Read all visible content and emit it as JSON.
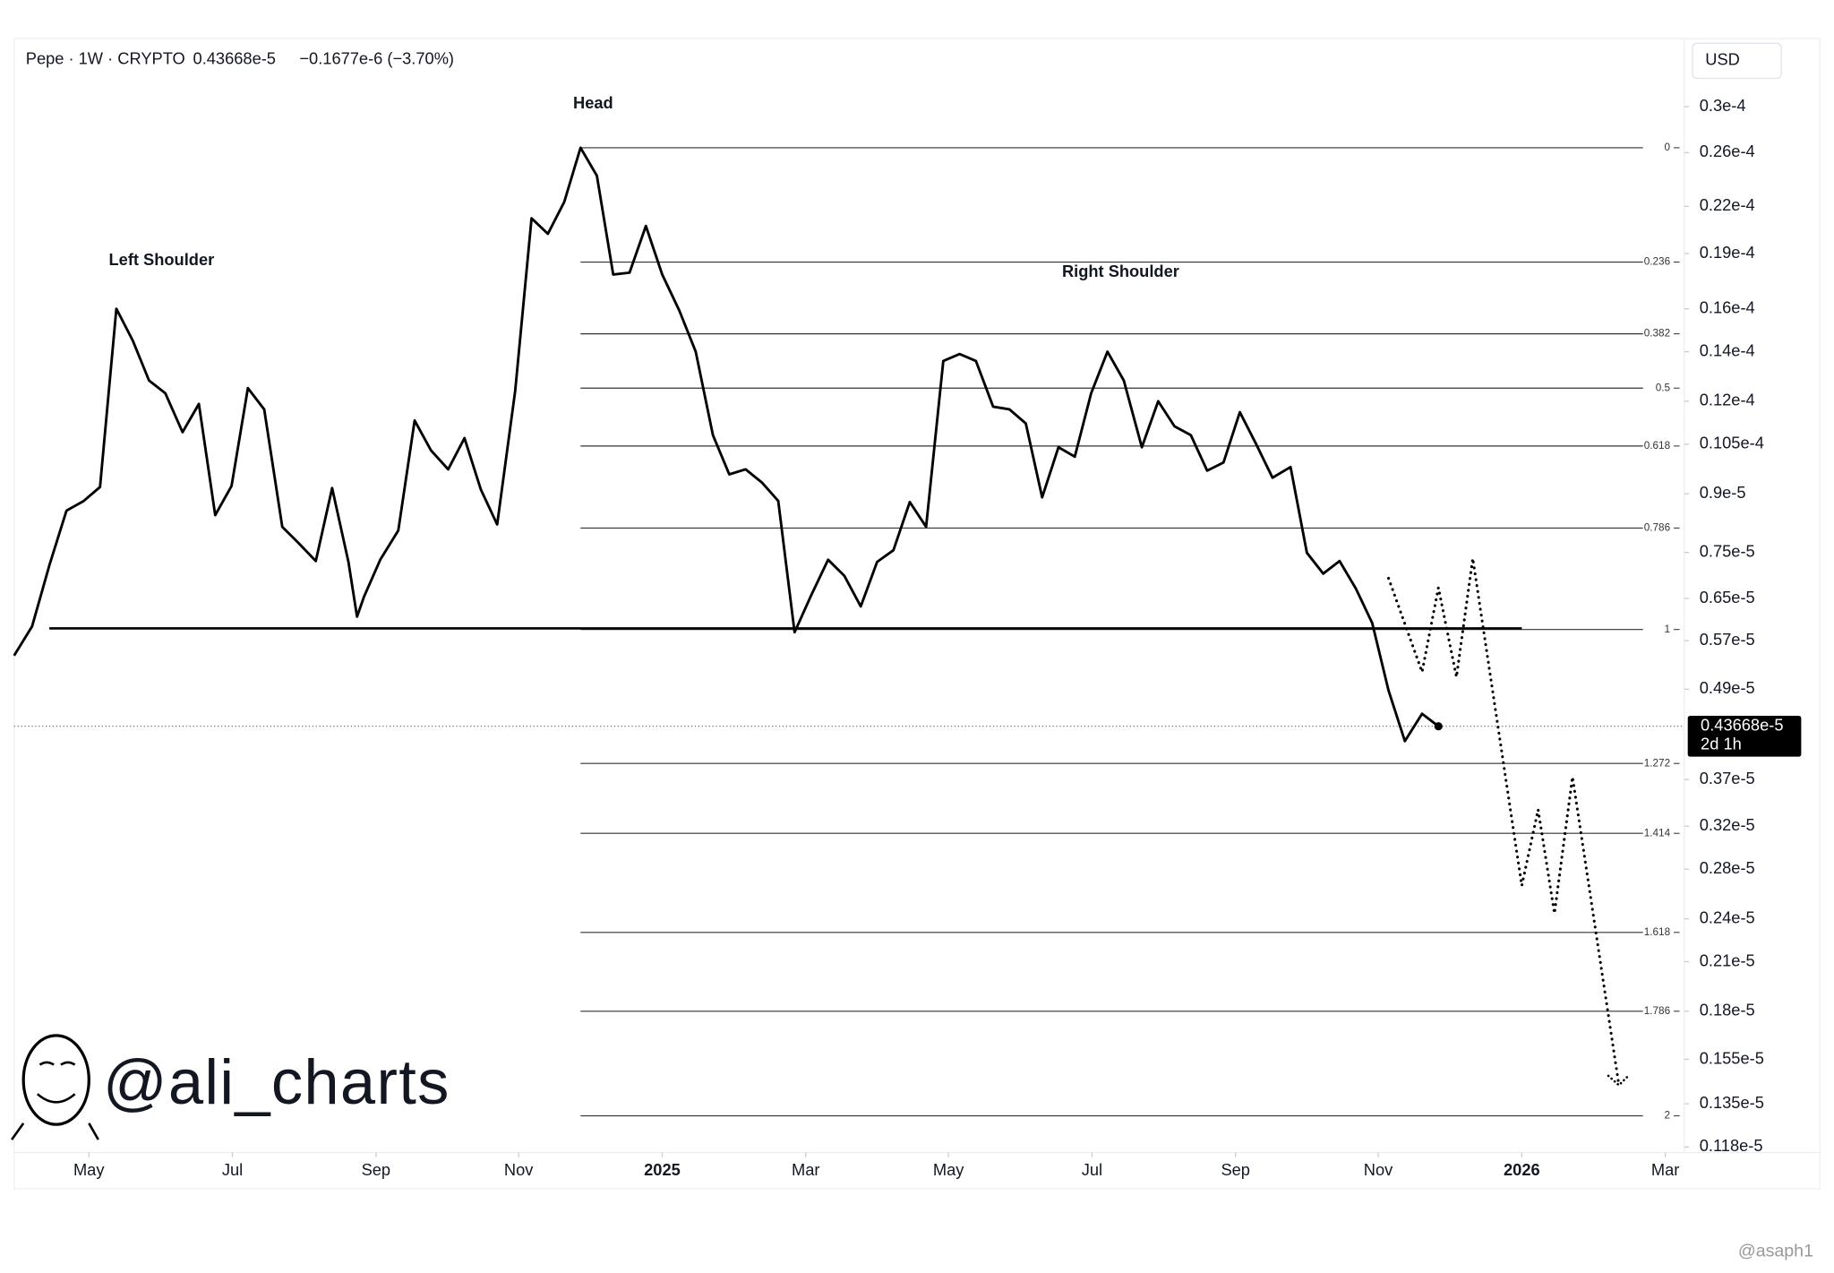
{
  "header": {
    "symbol": "Pepe · 1W · CRYPTO",
    "change": "−0.1677e-6 (−3.70%)",
    "currency": "USD"
  },
  "chart_data": {
    "type": "line",
    "log_scale": true,
    "color": "#000000",
    "annotations": [
      "Head",
      "Left Shoulder",
      "Right Shoulder"
    ],
    "x": [
      2024.246,
      2024.267,
      2024.287,
      2024.307,
      2024.327,
      2024.346,
      2024.365,
      2024.384,
      2024.403,
      2024.422,
      2024.442,
      2024.461,
      2024.48,
      2024.499,
      2024.518,
      2024.537,
      2024.558,
      2024.577,
      2024.597,
      2024.616,
      2024.635,
      2024.645,
      2024.653,
      2024.672,
      2024.693,
      2024.712,
      2024.731,
      2024.751,
      2024.77,
      2024.789,
      2024.808,
      2024.829,
      2024.848,
      2024.867,
      2024.886,
      2024.905,
      2024.924,
      2024.943,
      2024.962,
      2024.981,
      2025.0,
      2025.02,
      2025.039,
      2025.059,
      2025.078,
      2025.097,
      2025.116,
      2025.135,
      2025.154,
      2025.173,
      2025.193,
      2025.212,
      2025.231,
      2025.25,
      2025.269,
      2025.288,
      2025.307,
      2025.327,
      2025.346,
      2025.365,
      2025.385,
      2025.404,
      2025.423,
      2025.442,
      2025.461,
      2025.48,
      2025.499,
      2025.518,
      2025.537,
      2025.558,
      2025.577,
      2025.596,
      2025.615,
      2025.634,
      2025.653,
      2025.672,
      2025.691,
      2025.71,
      2025.731,
      2025.75,
      2025.769,
      2025.788,
      2025.807,
      2025.826,
      2025.845,
      2025.864,
      2025.884,
      2025.903
    ],
    "values": [
      5.44e-06,
      5.96e-06,
      7.2e-06,
      8.54e-06,
      8.8e-06,
      9.19e-06,
      1.6e-05,
      1.45e-05,
      1.28e-05,
      1.23e-05,
      1.09e-05,
      1.19e-05,
      8.42e-06,
      9.22e-06,
      1.25e-05,
      1.17e-05,
      8.12e-06,
      7.72e-06,
      7.3e-06,
      9.16e-06,
      7.28e-06,
      6.14e-06,
      6.53e-06,
      7.33e-06,
      8.03e-06,
      1.13e-05,
      1.03e-05,
      9.71e-06,
      1.07e-05,
      9.12e-06,
      8.18e-06,
      1.24e-05,
      2.12e-05,
      2.02e-05,
      2.23e-05,
      2.64e-05,
      2.42e-05,
      1.78e-05,
      1.79e-05,
      2.07e-05,
      1.78e-05,
      1.59e-05,
      1.4e-05,
      1.08e-05,
      9.56e-06,
      9.71e-06,
      9.32e-06,
      8.8e-06,
      5.85e-06,
      6.55e-06,
      7.33e-06,
      6.97e-06,
      6.34e-06,
      7.28e-06,
      7.55e-06,
      8.77e-06,
      8.12e-06,
      1.36e-05,
      1.39e-05,
      1.36e-05,
      1.18e-05,
      1.17e-05,
      1.12e-05,
      8.9e-06,
      1.04e-05,
      1.01e-05,
      1.23e-05,
      1.4e-05,
      1.28e-05,
      1.04e-05,
      1.2e-05,
      1.11e-05,
      1.08e-05,
      9.67e-06,
      9.92e-06,
      1.16e-05,
      1.05e-05,
      9.46e-06,
      9.78e-06,
      7.49e-06,
      7.02e-06,
      7.3e-06,
      6.7e-06,
      6.02e-06,
      4.88e-06,
      4.17e-06,
      4.54e-06,
      4.3668e-06
    ],
    "projection": {
      "x": [
        2025.845,
        2025.884,
        2025.903,
        2025.924,
        2025.943,
        2026.0,
        2026.019,
        2026.038,
        2026.059,
        2026.113
      ],
      "values": [
        6.92e-06,
        5.17e-06,
        6.72e-06,
        5.09e-06,
        7.36e-06,
        2.66e-06,
        3.37e-06,
        2.44e-06,
        3.73e-06,
        1.43e-06
      ]
    },
    "neckline": {
      "x": [
        2024.287,
        2026.0
      ],
      "price": 5.92e-06
    },
    "last_price": {
      "value": 4.3668e-06,
      "label": "0.43668e-5",
      "countdown": "2d 1h"
    },
    "fib": {
      "x": [
        2024.905,
        2026.141
      ],
      "levels": [
        {
          "ratio": 0,
          "price": 2.64e-05
        },
        {
          "ratio": 0.236,
          "price": 1.85e-05
        },
        {
          "ratio": 0.382,
          "price": 1.48e-05
        },
        {
          "ratio": 0.5,
          "price": 1.25e-05
        },
        {
          "ratio": 0.618,
          "price": 1.044e-05
        },
        {
          "ratio": 0.786,
          "price": 8.09e-06
        },
        {
          "ratio": 1,
          "price": 5.9e-06
        },
        {
          "ratio": 1.272,
          "price": 3.89e-06
        },
        {
          "ratio": 1.414,
          "price": 3.13e-06
        },
        {
          "ratio": 1.618,
          "price": 2.3e-06
        },
        {
          "ratio": 1.786,
          "price": 1.8e-06
        },
        {
          "ratio": 2,
          "price": 1.3e-06
        }
      ]
    },
    "xlim": [
      2024.246,
      2026.189
    ],
    "xticks": [
      {
        "value": 2024.333,
        "label": "May"
      },
      {
        "value": 2024.5,
        "label": "Jul"
      },
      {
        "value": 2024.667,
        "label": "Sep"
      },
      {
        "value": 2024.833,
        "label": "Nov"
      },
      2025,
      {
        "value": 2025.167,
        "label": "Mar"
      },
      {
        "value": 2025.333,
        "label": "May"
      },
      {
        "value": 2025.5,
        "label": "Jul"
      },
      {
        "value": 2025.667,
        "label": "Sep"
      },
      {
        "value": 2025.833,
        "label": "Nov"
      },
      2026,
      {
        "value": 2026.167,
        "label": "Mar"
      }
    ],
    "ylim": [
      1.16e-06,
      3.68e-05
    ],
    "yticks": [
      {
        "value": 3e-05,
        "label": "0.3e-4"
      },
      {
        "value": 2.6e-05,
        "label": "0.26e-4"
      },
      {
        "value": 2.2e-05,
        "label": "0.22e-4"
      },
      {
        "value": 1.9e-05,
        "label": "0.19e-4"
      },
      {
        "value": 1.6e-05,
        "label": "0.16e-4"
      },
      {
        "value": 1.4e-05,
        "label": "0.14e-4"
      },
      {
        "value": 1.2e-05,
        "label": "0.12e-4"
      },
      {
        "value": 1.05e-05,
        "label": "0.105e-4"
      },
      {
        "value": 9e-06,
        "label": "0.9e-5"
      },
      {
        "value": 7.5e-06,
        "label": "0.75e-5"
      },
      {
        "value": 6.5e-06,
        "label": "0.65e-5"
      },
      {
        "value": 5.7e-06,
        "label": "0.57e-5"
      },
      {
        "value": 4.9e-06,
        "label": "0.49e-5"
      },
      {
        "value": 3.7e-06,
        "label": "0.37e-5"
      },
      {
        "value": 3.2e-06,
        "label": "0.32e-5"
      },
      {
        "value": 2.8e-06,
        "label": "0.28e-5"
      },
      {
        "value": 2.4e-06,
        "label": "0.24e-5"
      },
      {
        "value": 2.1e-06,
        "label": "0.21e-5"
      },
      {
        "value": 1.8e-06,
        "label": "0.18e-5"
      },
      {
        "value": 1.55e-06,
        "label": "0.155e-5"
      },
      {
        "value": 1.35e-06,
        "label": "0.135e-5"
      },
      {
        "value": 1.18e-06,
        "label": "0.118e-5"
      }
    ]
  },
  "watermark": {
    "logo": "@ali_charts",
    "credit": "@asaph1"
  }
}
